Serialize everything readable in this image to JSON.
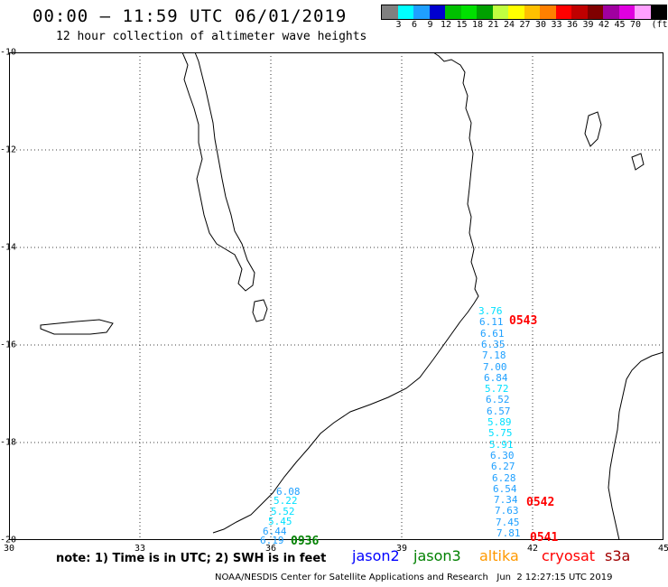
{
  "title": "00:00 – 11:59 UTC 06/01/2019",
  "subtitle": "12 hour collection of altimeter wave heights",
  "legend": {
    "unit": "(ft)",
    "colors": [
      "#808080",
      "#00ffff",
      "#1fa0ff",
      "#0000d0",
      "#00c000",
      "#00e000",
      "#00a000",
      "#c0ff40",
      "#ffff00",
      "#ffc000",
      "#ff8000",
      "#ff0000",
      "#c00000",
      "#800000",
      "#a000a0",
      "#e000e0",
      "#ffa0ff",
      "#000000"
    ],
    "labels": [
      "3",
      "6",
      "9",
      "12",
      "15",
      "18",
      "21",
      "24",
      "27",
      "30",
      "33",
      "36",
      "39",
      "42",
      "45",
      "70"
    ]
  },
  "axes": {
    "lat_labels": [
      "-10",
      "-12",
      "-14",
      "-16",
      "-18",
      "-20"
    ],
    "lon_labels": [
      "30",
      "33",
      "36",
      "39",
      "42",
      "45"
    ]
  },
  "tracks": [
    {
      "satellite": "jason3",
      "time": "0936",
      "values": [
        "6.08",
        "5.22",
        "5.52",
        "5.45",
        "6.44",
        "6.19"
      ]
    },
    {
      "satellite": "cryosat",
      "times": [
        "0543",
        "0542",
        "0541"
      ],
      "values": [
        "3.76",
        "6.11",
        "6.61",
        "6.35",
        "7.18",
        "7.00",
        "6.84",
        "5.72",
        "6.52",
        "6.57",
        "5.89",
        "5.75",
        "5.91",
        "6.30",
        "6.27",
        "6.28",
        "6.54",
        "7.34",
        "7.63",
        "7.45",
        "7.81"
      ]
    }
  ],
  "note": "note: 1) Time is in UTC; 2) SWH is in feet",
  "satellites": [
    {
      "name": "jason2",
      "color": "#0000ff"
    },
    {
      "name": "jason3",
      "color": "#008000"
    },
    {
      "name": "altika",
      "color": "#ff9900"
    },
    {
      "name": "cryosat",
      "color": "#ff0000"
    },
    {
      "name": "s3a",
      "color": "#a00000"
    }
  ],
  "credit": "NOAA/NESDIS Center for Satellite Applications and Research   Jun  2 12:27:15 UTC 2019"
}
